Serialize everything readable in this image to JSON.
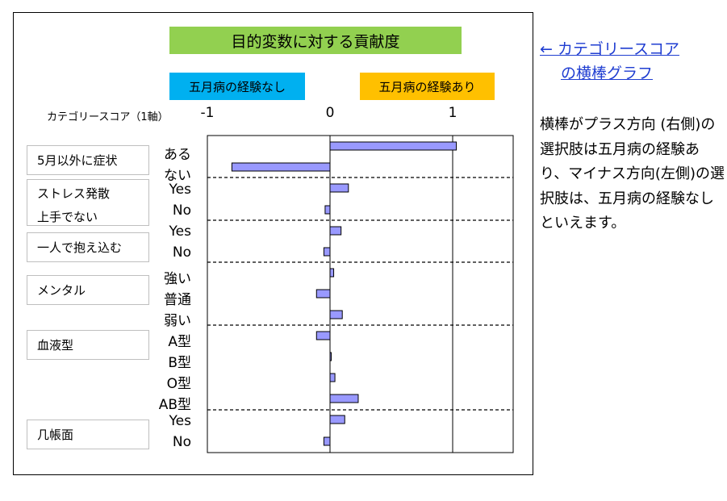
{
  "title": "目的変数に対する貢献度",
  "legend": {
    "negative": "五月病の経験なし",
    "positive": "五月病の経験あり"
  },
  "axis_title": "カテゴリースコア（1軸）",
  "side": {
    "link_line1": "← カテゴリースコア",
    "link_line2": "の横棒グラフ",
    "description": "横棒がプラス方向 (右側)の選択肢は五月病の経験あり、マイナス方向(左側)の選択肢は、五月病の経験なしといえます。"
  },
  "colors": {
    "bar": "#9999ff",
    "title_bg": "#92d050",
    "neg_bg": "#00b0f0",
    "pos_bg": "#ffc000"
  },
  "chart_data": {
    "type": "bar",
    "orientation": "horizontal",
    "xlim": [
      -1,
      1
    ],
    "xticks": [
      "-1",
      "0",
      "1"
    ],
    "groups": [
      {
        "name": "5月以外に症状",
        "levels": [
          "ある",
          "ない"
        ],
        "values": [
          1.03,
          -0.8
        ]
      },
      {
        "name_lines": [
          "ストレス発散",
          "上手でない"
        ],
        "levels": [
          "Yes",
          "No"
        ],
        "values": [
          0.15,
          -0.04
        ]
      },
      {
        "name": "一人で抱え込む",
        "levels": [
          "Yes",
          "No"
        ],
        "values": [
          0.09,
          -0.05
        ]
      },
      {
        "name": "メンタル",
        "levels": [
          "強い",
          "普通",
          "弱い"
        ],
        "values": [
          0.03,
          -0.11,
          0.1
        ]
      },
      {
        "name": "血液型",
        "levels": [
          "A型",
          "B型",
          "O型",
          "AB型"
        ],
        "values": [
          -0.11,
          0.01,
          0.04,
          0.23
        ]
      },
      {
        "name": "几帳面",
        "levels": [
          "Yes",
          "No"
        ],
        "values": [
          0.12,
          -0.05
        ]
      }
    ]
  }
}
